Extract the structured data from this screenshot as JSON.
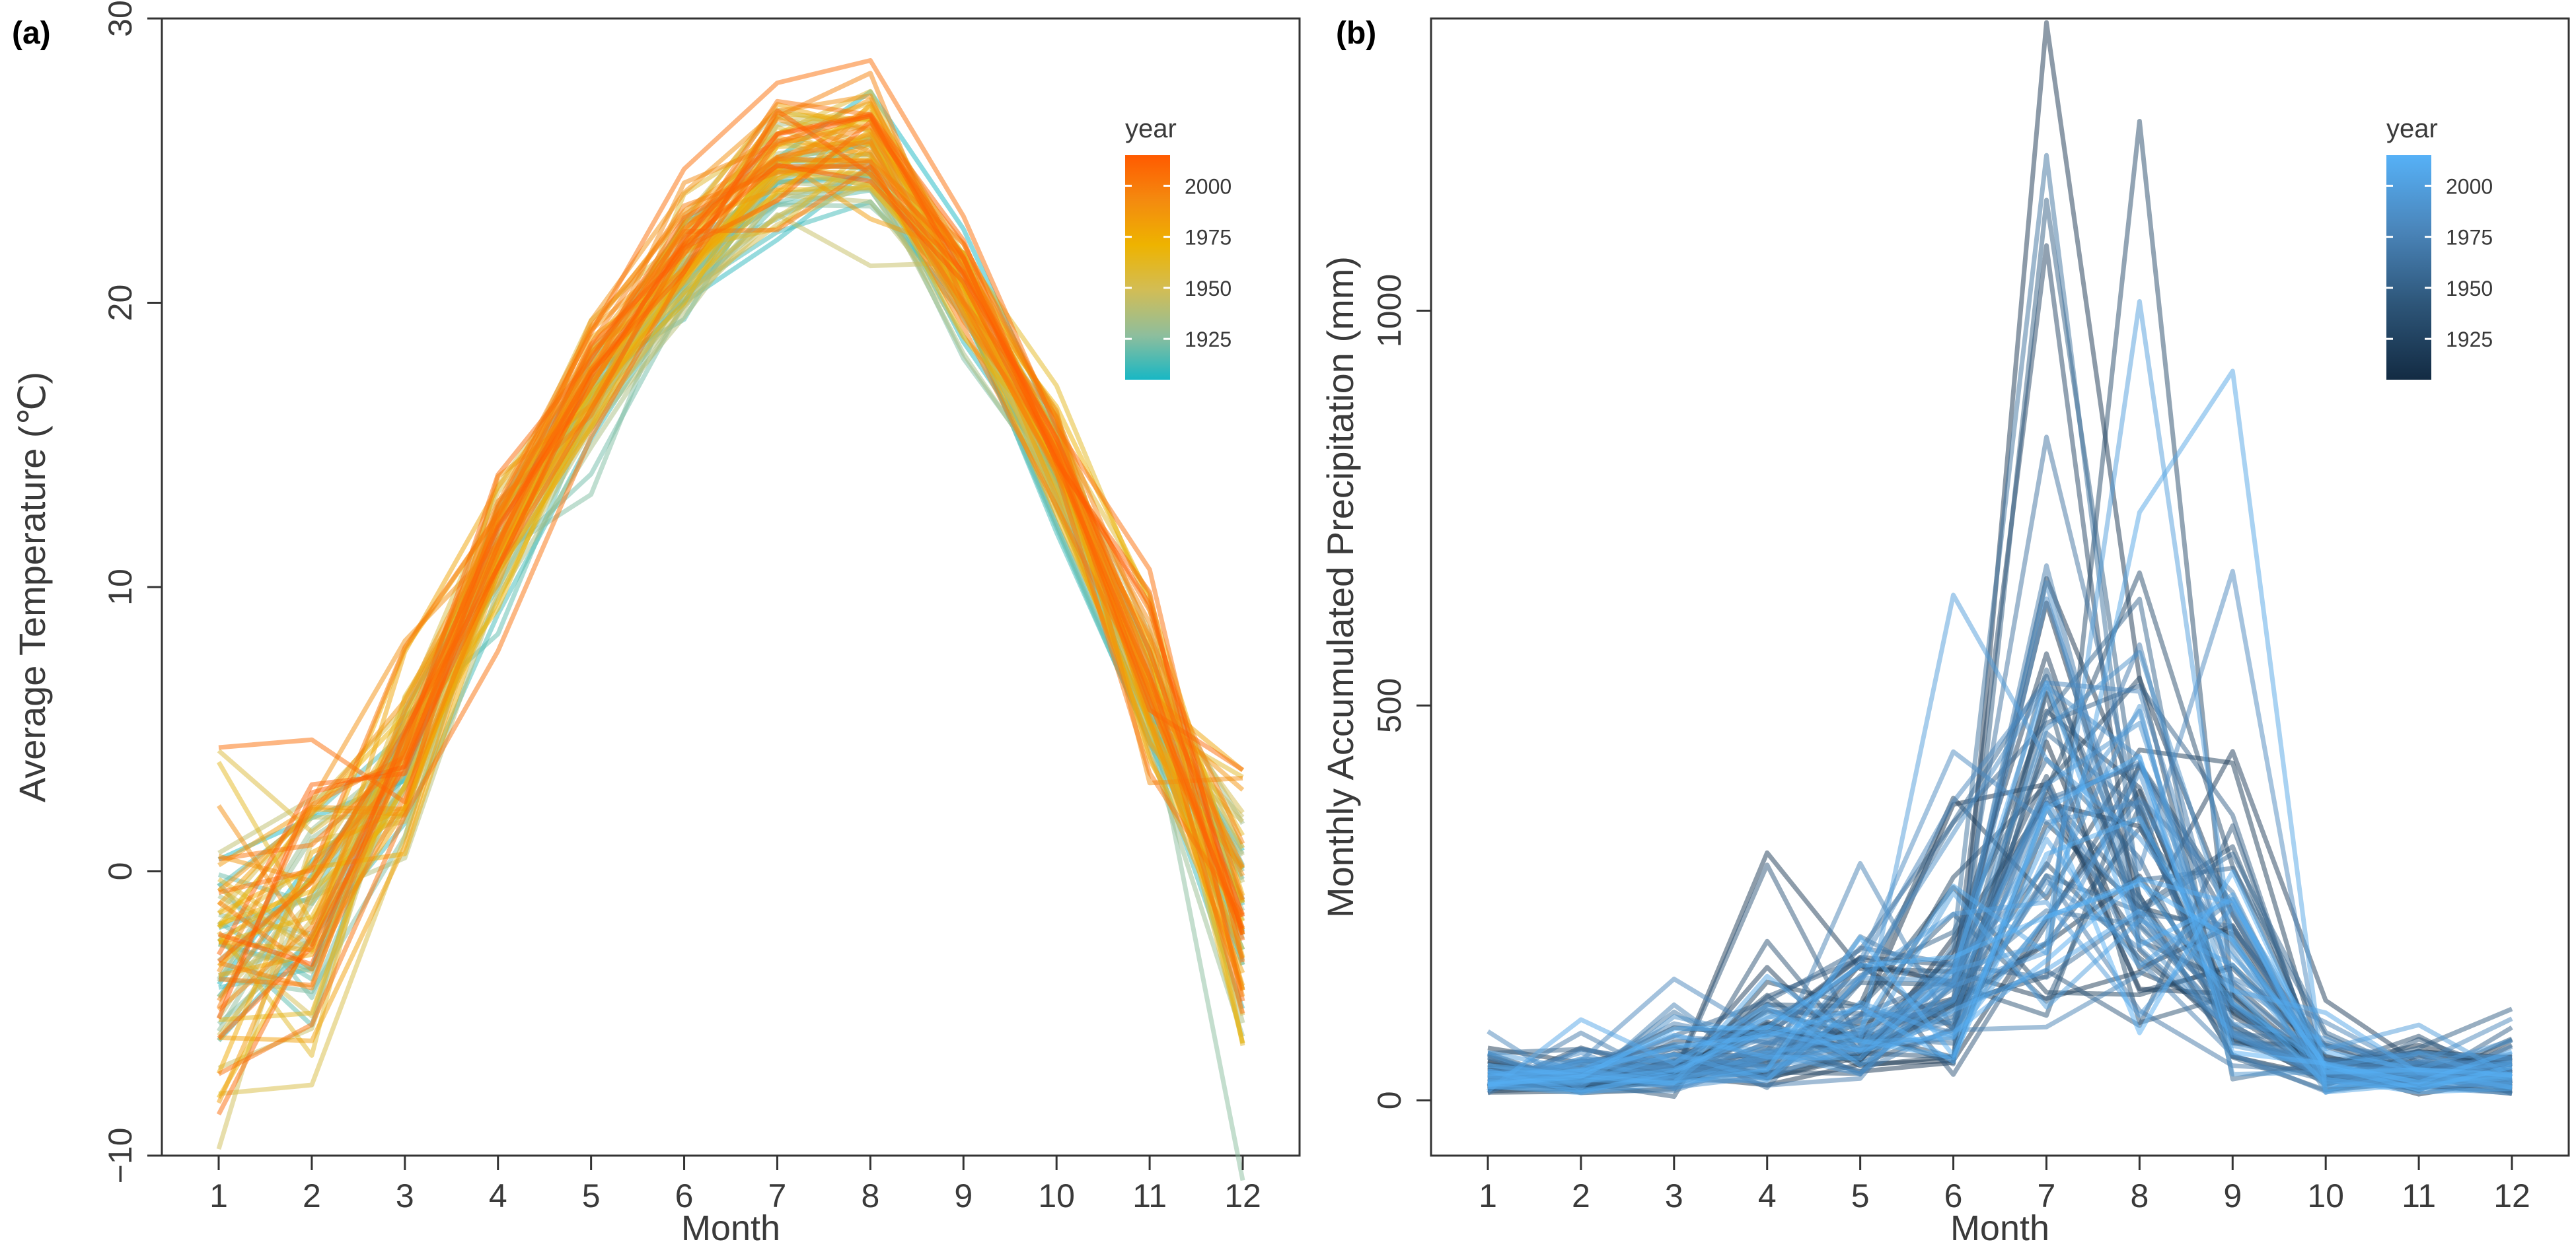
{
  "chart_data": [
    {
      "panel_label": "(a)",
      "type": "line",
      "title": "",
      "xlabel": "Month",
      "ylabel": "Average Temperature (℃)",
      "x": [
        1,
        2,
        3,
        4,
        5,
        6,
        7,
        8,
        9,
        10,
        11,
        12
      ],
      "x_ticks": [
        "1",
        "2",
        "3",
        "4",
        "5",
        "6",
        "7",
        "8",
        "9",
        "10",
        "11",
        "12"
      ],
      "ylim": [
        -10,
        30
      ],
      "y_ticks": [
        "−10",
        "0",
        "10",
        "20",
        "30"
      ],
      "y_tick_values": [
        -10,
        0,
        10,
        20,
        30
      ],
      "grid": false,
      "legend": {
        "title": "year",
        "position": "top-right",
        "labels": [
          "2000",
          "1975",
          "1950",
          "1925"
        ],
        "label_values": [
          2000,
          1975,
          1950,
          1925
        ],
        "range": [
          1905,
          2015
        ],
        "colors": [
          "#18b7c4",
          "#8fbe9c",
          "#d2bd55",
          "#eeb300",
          "#f48a0f",
          "#ff5a00"
        ]
      },
      "series_summary": {
        "years": [
          1905,
          2015
        ],
        "count": 75,
        "mean": [
          -3.0,
          -1.5,
          4.0,
          11.5,
          17.0,
          21.5,
          24.8,
          25.2,
          20.5,
          14.5,
          6.5,
          -1.0
        ],
        "spread": [
          3.5,
          3.0,
          2.0,
          1.6,
          1.3,
          1.1,
          1.2,
          1.1,
          1.0,
          1.3,
          1.8,
          3.0
        ]
      }
    },
    {
      "panel_label": "(b)",
      "type": "line",
      "title": "",
      "xlabel": "Month",
      "ylabel": "Monthly Accumulated Precipitation (mm)",
      "x": [
        1,
        2,
        3,
        4,
        5,
        6,
        7,
        8,
        9,
        10,
        11,
        12
      ],
      "x_ticks": [
        "1",
        "2",
        "3",
        "4",
        "5",
        "6",
        "7",
        "8",
        "9",
        "10",
        "11",
        "12"
      ],
      "ylim": [
        -70,
        1370
      ],
      "y_ticks": [
        "0",
        "500",
        "1000"
      ],
      "y_tick_values": [
        0,
        500,
        1000
      ],
      "grid": false,
      "legend": {
        "title": "year",
        "position": "top-right",
        "labels": [
          "2000",
          "1975",
          "1950",
          "1925"
        ],
        "label_values": [
          2000,
          1975,
          1950,
          1925
        ],
        "range": [
          1905,
          2015
        ],
        "colors": [
          "#132b43",
          "#2d5578",
          "#4a85ba",
          "#56b1f7"
        ]
      },
      "series_summary": {
        "years": [
          1905,
          2015
        ],
        "count": 75,
        "median": [
          25,
          30,
          40,
          60,
          80,
          130,
          360,
          300,
          140,
          40,
          35,
          30
        ],
        "notable_peaks": [
          {
            "month": 7,
            "value": 1365
          },
          {
            "month": 8,
            "value": 1240
          },
          {
            "month": 7,
            "value": 1140
          },
          {
            "month": 7,
            "value": 840
          },
          {
            "month": 9,
            "value": 670
          },
          {
            "month": 6,
            "value": 640
          }
        ]
      }
    }
  ]
}
